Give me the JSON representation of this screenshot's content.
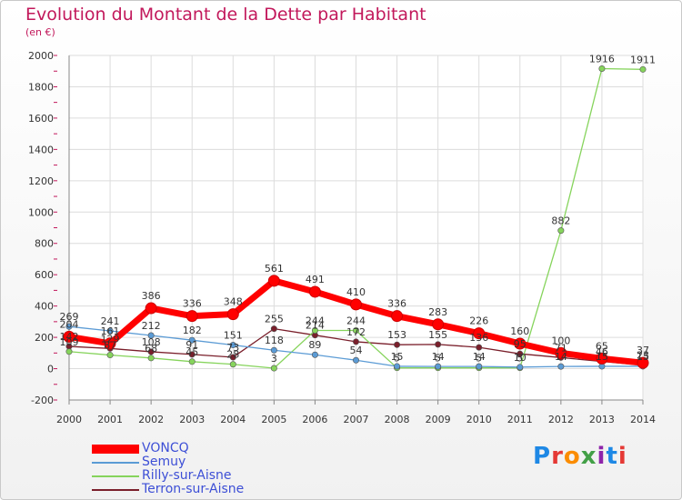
{
  "title": "Evolution du Montant de la Dette par Habitant",
  "unit_label": "(en €)",
  "logo": {
    "text": "Proxiti",
    "colors": [
      "#1e88e5",
      "#e53935",
      "#fb8c00",
      "#43a047",
      "#8e24aa",
      "#1e88e5",
      "#e53935"
    ]
  },
  "chart_data": {
    "type": "line",
    "x": [
      "2000",
      "2001",
      "2002",
      "2003",
      "2004",
      "2005",
      "2006",
      "2007",
      "2008",
      "2009",
      "2010",
      "2011",
      "2012",
      "2013",
      "2014"
    ],
    "ylim": [
      -200,
      2000
    ],
    "yticks": [
      "-200",
      "0",
      "200",
      "400",
      "600",
      "800",
      "1000",
      "1200",
      "1400",
      "1600",
      "1800",
      "2000"
    ],
    "grid": true,
    "legend_position": "bottom-left",
    "series": [
      {
        "name": "VONCQ",
        "color": "#ff0000",
        "values": [
          204,
          161,
          386,
          336,
          348,
          561,
          491,
          410,
          336,
          283,
          226,
          160,
          100,
          65,
          37
        ],
        "labels": [
          "204",
          "161",
          "386",
          "336",
          "348",
          "561",
          "491",
          "410",
          "336",
          "283",
          "226",
          "160",
          "100",
          "65",
          "37"
        ]
      },
      {
        "name": "Semuy",
        "color": "#5b9bd5",
        "values": [
          269,
          241,
          212,
          182,
          151,
          118,
          89,
          54,
          15,
          14,
          14,
          10,
          14,
          15,
          15
        ],
        "labels": [
          "269",
          "241",
          "212",
          "182",
          "151",
          "118",
          "89",
          "54",
          "15",
          "14",
          "14",
          "10",
          "14",
          "15",
          "15"
        ]
      },
      {
        "name": "Rilly-sur-Aisne",
        "color": "#86d45c",
        "values": [
          109,
          87,
          68,
          45,
          28,
          3,
          244,
          244,
          5,
          5,
          5,
          5,
          882,
          1916,
          1911
        ],
        "labels": [
          "109",
          "87",
          "68",
          "45",
          "28",
          "3",
          "244",
          "244",
          "5",
          "5",
          "5",
          "5",
          "882",
          "1916",
          "1911"
        ]
      },
      {
        "name": "Terron-sur-Aisne",
        "color": "#7a1f2b",
        "values": [
          142,
          129,
          108,
          91,
          73,
          255,
          214,
          172,
          153,
          155,
          136,
          95,
          71,
          46,
          23
        ],
        "labels": [
          "142",
          "129",
          "108",
          "91",
          "73",
          "255",
          "214",
          "172",
          "153",
          "155",
          "136",
          "95",
          "71",
          "46",
          "23"
        ]
      }
    ]
  }
}
